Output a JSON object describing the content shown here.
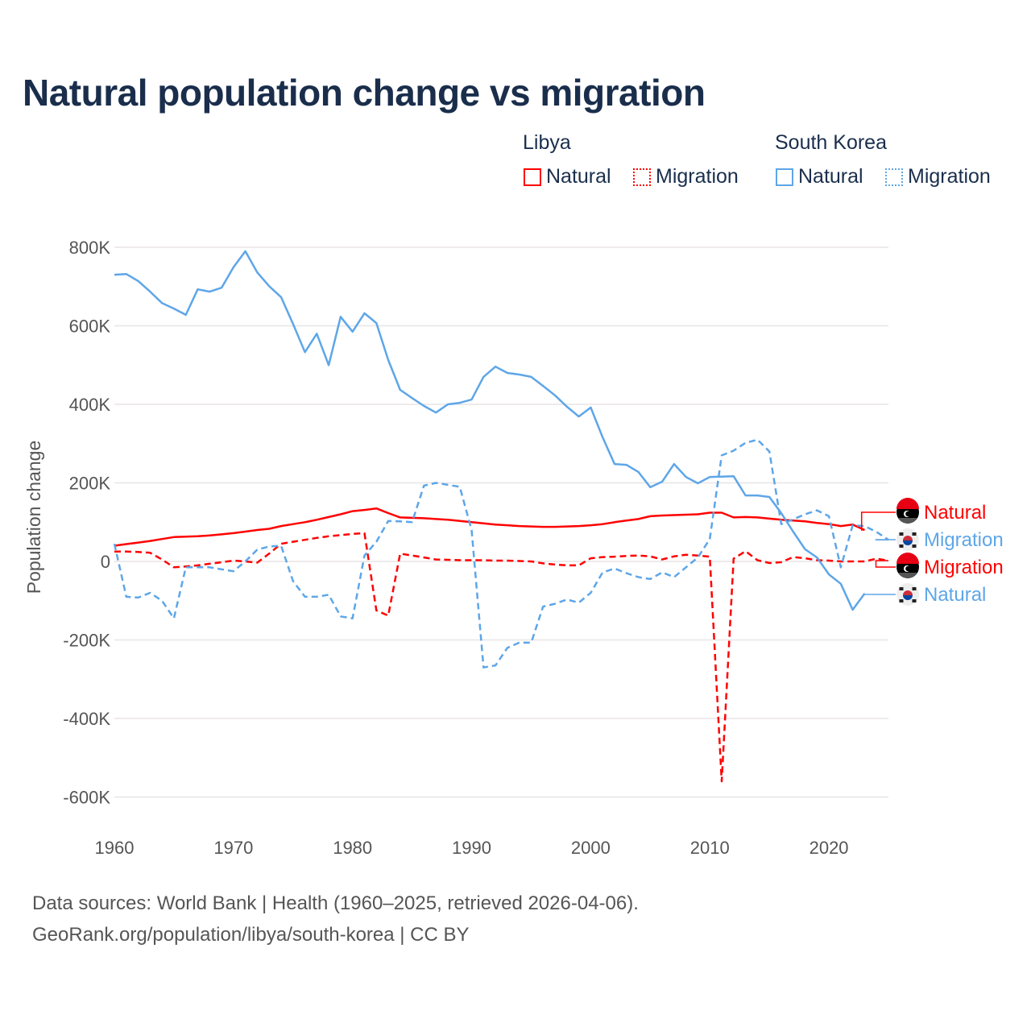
{
  "title": "Natural population change vs migration",
  "legend": {
    "groups": [
      {
        "name": "Libya",
        "color": "#ff0000",
        "items": [
          "Natural",
          "Migration"
        ]
      },
      {
        "name": "South Korea",
        "color": "#5ea6e8",
        "items": [
          "Natural",
          "Migration"
        ]
      }
    ]
  },
  "footer": {
    "line1": "Data sources: World Bank | Health (1960–2025, retrieved 2026-04-06).",
    "line2": "GeoRank.org/population/libya/south-korea | CC BY"
  },
  "chart_data": {
    "type": "line",
    "title": "Natural population change vs migration",
    "xlabel": "",
    "ylabel": "Population change",
    "xlim": [
      1960,
      2025
    ],
    "ylim": [
      -650000,
      850000
    ],
    "x_ticks": [
      1960,
      1970,
      1980,
      1990,
      2000,
      2010,
      2020
    ],
    "x_tick_labels": [
      "1960",
      "1970",
      "1980",
      "1990",
      "2000",
      "2010",
      "2020"
    ],
    "y_ticks": [
      800000,
      600000,
      400000,
      200000,
      0,
      -200000,
      -400000,
      -600000
    ],
    "y_tick_labels": [
      "800K",
      "600K",
      "400K",
      "200K",
      "0",
      "-200K",
      "-400K",
      "-600K"
    ],
    "grid": true,
    "legend_position": "top-right",
    "series": [
      {
        "name": "South Korea Natural",
        "label": "Natural",
        "country": "South Korea",
        "color": "#5ea6e8",
        "dash": false,
        "start": 1960,
        "values_k": [
          730,
          732,
          714,
          687,
          658,
          644,
          628,
          693,
          687,
          697,
          749,
          790,
          736,
          701,
          673,
          605,
          533,
          580,
          500,
          623,
          585,
          632,
          607,
          513,
          437,
          416,
          396,
          379,
          400,
          404,
          412,
          470,
          496,
          480,
          476,
          470,
          447,
          423,
          394,
          369,
          392,
          316,
          248,
          246,
          228,
          189,
          203,
          248,
          215,
          199,
          215,
          216,
          217,
          168,
          168,
          164,
          123,
          76,
          31,
          10,
          -33,
          -57,
          -123,
          -82
        ]
      },
      {
        "name": "South Korea Migration",
        "label": "Migration",
        "country": "South Korea",
        "color": "#5ea6e8",
        "dash": true,
        "start": 1960,
        "values_k": [
          45,
          -90,
          -92,
          -80,
          -100,
          -145,
          -15,
          -15,
          -15,
          -20,
          -25,
          0,
          30,
          38,
          40,
          -50,
          -90,
          -90,
          -85,
          -140,
          -145,
          15,
          50,
          103,
          102,
          100,
          193,
          200,
          195,
          190,
          80,
          -270,
          -265,
          -220,
          -207,
          -207,
          -115,
          -108,
          -97,
          -105,
          -80,
          -28,
          -18,
          -30,
          -40,
          -45,
          -28,
          -40,
          -15,
          10,
          57,
          270,
          282,
          302,
          310,
          280,
          95,
          107,
          120,
          130,
          115,
          -15,
          92,
          90,
          75,
          55
        ]
      },
      {
        "name": "Libya Natural",
        "label": "Natural",
        "country": "Libya",
        "color": "#ff0000",
        "dash": false,
        "start": 1960,
        "values_k": [
          40,
          44,
          48,
          52,
          57,
          62,
          63,
          64,
          66,
          69,
          72,
          76,
          80,
          83,
          90,
          95,
          100,
          106,
          113,
          120,
          128,
          131,
          135,
          123,
          112,
          111,
          110,
          108,
          106,
          103,
          100,
          97,
          94,
          92,
          90,
          89,
          88,
          88,
          89,
          90,
          92,
          95,
          100,
          104,
          108,
          115,
          117,
          118,
          119,
          120,
          124,
          124,
          112,
          113,
          112,
          109,
          106,
          104,
          102,
          98,
          95,
          90,
          94,
          80
        ]
      },
      {
        "name": "Libya Migration",
        "label": "Migration",
        "country": "Libya",
        "color": "#ff0000",
        "dash": true,
        "start": 1960,
        "values_k": [
          25,
          25,
          24,
          22,
          5,
          -15,
          -13,
          -10,
          -6,
          -2,
          2,
          0,
          -3,
          20,
          45,
          50,
          55,
          60,
          64,
          67,
          70,
          72,
          -125,
          -138,
          20,
          15,
          10,
          5,
          4,
          3,
          3,
          3,
          2,
          2,
          1,
          0,
          -5,
          -8,
          -10,
          -10,
          8,
          11,
          12,
          14,
          15,
          13,
          5,
          13,
          17,
          15,
          12,
          -560,
          7,
          26,
          3,
          -4,
          -2,
          11,
          8,
          3,
          2,
          0,
          0,
          0,
          7,
          2
        ]
      }
    ],
    "end_labels": [
      {
        "label": "Natural",
        "country": "Libya",
        "flag": "libya-flag"
      },
      {
        "label": "Migration",
        "country": "South Korea",
        "flag": "south-korea-flag"
      },
      {
        "label": "Migration",
        "country": "Libya",
        "flag": "libya-flag"
      },
      {
        "label": "Natural",
        "country": "South Korea",
        "flag": "south-korea-flag"
      }
    ]
  }
}
